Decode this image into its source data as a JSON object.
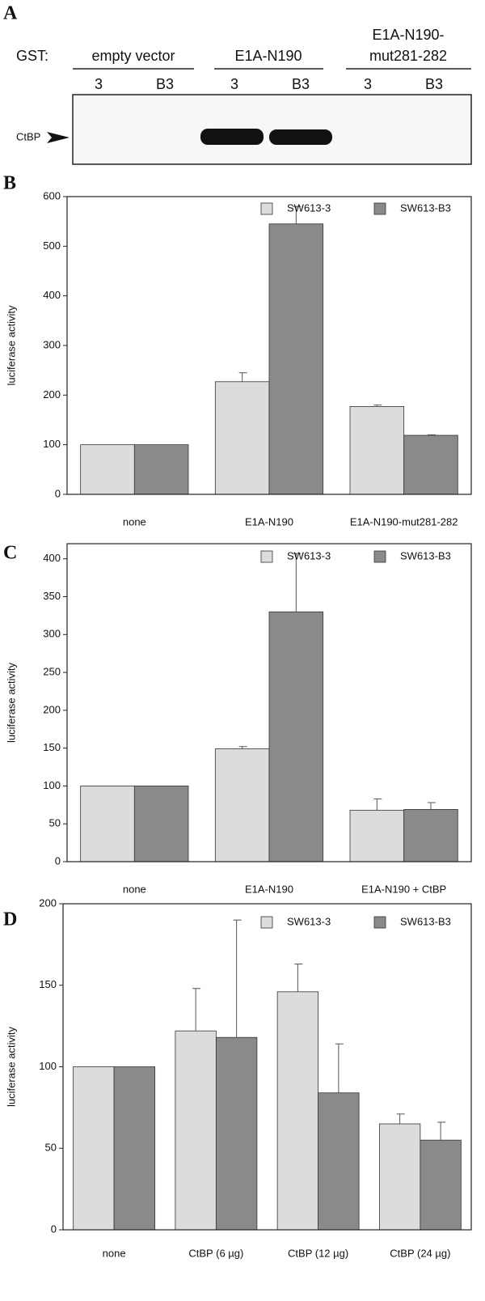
{
  "blot": {
    "panel_label": "A",
    "gst_label": "GST:",
    "band_label": "CtBP",
    "groups": [
      {
        "label": [
          "empty vector"
        ],
        "lanes": [
          "3",
          "B3"
        ]
      },
      {
        "label": [
          "E1A-N190"
        ],
        "lanes": [
          "3",
          "B3"
        ]
      },
      {
        "label": [
          "E1A-N190-",
          "mut281-282"
        ],
        "lanes": [
          "3",
          "B3"
        ]
      }
    ]
  },
  "chart_data": [
    {
      "type": "bar",
      "panel_label": "B",
      "ylabel": "luciferase activity",
      "categories": [
        "none",
        "E1A-N190",
        "E1A-N190-mut281-282"
      ],
      "series": [
        {
          "name": "SW613-3",
          "color": "#dcdcdc",
          "values": [
            100,
            227,
            177
          ],
          "errors": [
            null,
            18,
            3
          ]
        },
        {
          "name": "SW613-B3",
          "color": "#8a8a8a",
          "values": [
            100,
            545,
            119
          ],
          "errors": [
            null,
            35,
            1
          ]
        }
      ],
      "ylim": [
        0,
        600
      ],
      "yticks": [
        0,
        100,
        200,
        300,
        400,
        500,
        600
      ],
      "legend": "upper right"
    },
    {
      "type": "bar",
      "panel_label": "C",
      "ylabel": "luciferase activity",
      "categories": [
        "none",
        "E1A-N190",
        "E1A-N190 + CtBP"
      ],
      "series": [
        {
          "name": "SW613-3",
          "color": "#dcdcdc",
          "values": [
            100,
            149,
            68
          ],
          "errors": [
            null,
            3,
            15
          ]
        },
        {
          "name": "SW613-B3",
          "color": "#8a8a8a",
          "values": [
            100,
            330,
            69
          ],
          "errors": [
            null,
            77,
            9
          ]
        }
      ],
      "ylim": [
        0,
        420
      ],
      "yticks": [
        0,
        50,
        100,
        150,
        200,
        250,
        300,
        350,
        400
      ],
      "legend": "upper right"
    },
    {
      "type": "bar",
      "panel_label": "D",
      "ylabel": "luciferase activity",
      "categories": [
        "none",
        "CtBP (6 µg)",
        "CtBP (12 µg)",
        "CtBP (24 µg)"
      ],
      "series": [
        {
          "name": "SW613-3",
          "color": "#dcdcdc",
          "values": [
            100,
            122,
            146,
            65
          ],
          "errors": [
            null,
            26,
            17,
            6
          ]
        },
        {
          "name": "SW613-B3",
          "color": "#8a8a8a",
          "values": [
            100,
            118,
            84,
            55
          ],
          "errors": [
            null,
            72,
            30,
            11
          ]
        }
      ],
      "ylim": [
        0,
        200
      ],
      "yticks": [
        0,
        50,
        100,
        150,
        200
      ],
      "legend": "upper right"
    }
  ]
}
